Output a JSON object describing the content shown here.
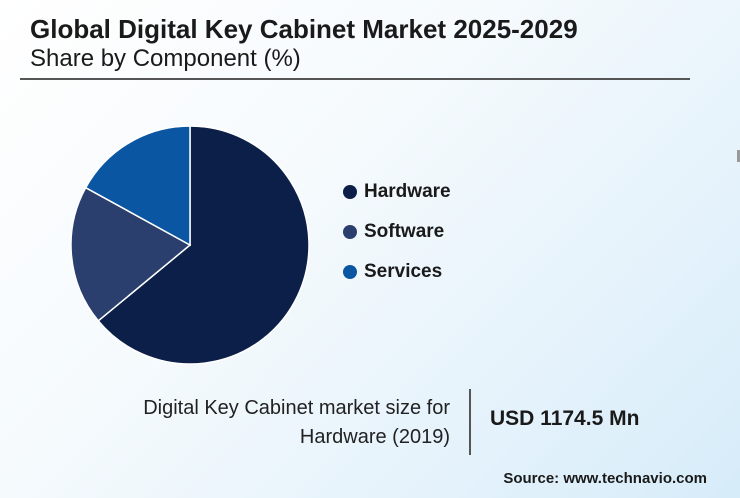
{
  "title": "Global Digital Key Cabinet Market 2025-2029",
  "subtitle": "Share by Component (%)",
  "chart_data": {
    "type": "pie",
    "categories": [
      "Hardware",
      "Software",
      "Services"
    ],
    "values": [
      64,
      19,
      17
    ],
    "colors": [
      "#0b1f48",
      "#2a3f6e",
      "#0a56a3"
    ],
    "legend_position": "right"
  },
  "footer": {
    "label_line1": "Digital Key Cabinet market size for",
    "label_line2": "Hardware (2019)",
    "value": "USD 1174.5 Mn"
  },
  "source": "Source: www.technavio.com"
}
